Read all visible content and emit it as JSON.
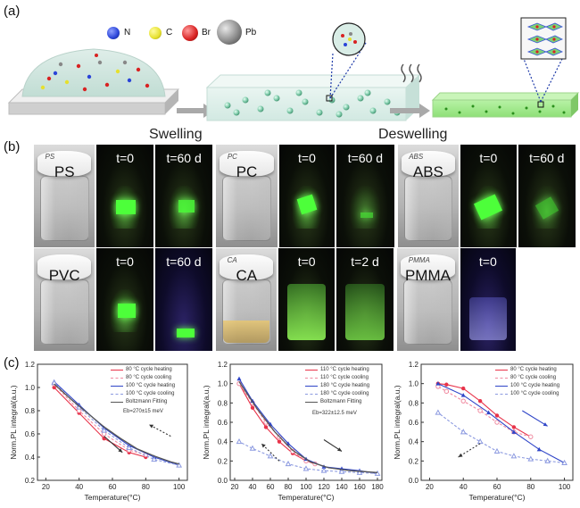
{
  "panel_labels": {
    "a": "(a)",
    "b": "(b)",
    "c": "(c)"
  },
  "legend_a": [
    {
      "symbol": "N",
      "color": "#2a44d8"
    },
    {
      "symbol": "C",
      "color": "#e6e02e"
    },
    {
      "symbol": "Br",
      "color": "#d82222"
    },
    {
      "symbol": "Pb",
      "color": "#888888"
    }
  ],
  "titles": {
    "swelling": "Swelling",
    "deswelling": "Deswelling"
  },
  "photos_row1": [
    {
      "vial": "PS",
      "cap": "PS",
      "t1": "t=0",
      "t2": "t=60 d"
    },
    {
      "vial": "PC",
      "cap": "PC",
      "t1": "t=0",
      "t2": "t=60 d"
    },
    {
      "vial": "ABS",
      "cap": "ABS",
      "t1": "t=0",
      "t2": "t=60 d"
    }
  ],
  "photos_row2": [
    {
      "vial": "PVC",
      "cap": "",
      "t1": "t=0",
      "t2": "t=60 d"
    },
    {
      "vial": "CA",
      "cap": "CA",
      "t1": "t=0",
      "t2": "t=2 d"
    },
    {
      "vial": "PMMA",
      "cap": "PMMA",
      "t1": "t=0",
      "t2": ""
    }
  ],
  "chart_data": [
    {
      "type": "line",
      "xlabel": "Temperature(°C)",
      "ylabel": "Norm.PL integral(a.u.)",
      "xlim": [
        15,
        105
      ],
      "ylim": [
        0.2,
        1.2
      ],
      "xticks": [
        20,
        40,
        60,
        80,
        100
      ],
      "yticks": [
        0.2,
        0.4,
        0.6,
        0.8,
        1.0,
        1.2
      ],
      "legend": [
        "80 °C cycle heating",
        "80 °C cycle cooling",
        "100 °C cycle heating",
        "100 °C cycle cooling",
        "Boltzmann Fitting"
      ],
      "annotation": "Eb=270±15 meV",
      "series": [
        {
          "name": "80 °C cycle heating",
          "color": "#e8334a",
          "dash": false,
          "marker": "circle",
          "x": [
            25,
            40,
            55,
            70,
            80
          ],
          "y": [
            1.0,
            0.78,
            0.56,
            0.44,
            0.4
          ]
        },
        {
          "name": "80 °C cycle cooling",
          "color": "#f08aa0",
          "dash": true,
          "marker": "circle-open",
          "x": [
            80,
            70,
            55,
            40,
            25
          ],
          "y": [
            0.42,
            0.46,
            0.6,
            0.8,
            1.03
          ]
        },
        {
          "name": "100 °C cycle heating",
          "color": "#2f45c8",
          "dash": false,
          "marker": "triangle",
          "x": [
            25,
            40,
            55,
            70,
            85,
            100
          ],
          "y": [
            1.05,
            0.85,
            0.65,
            0.5,
            0.4,
            0.33
          ]
        },
        {
          "name": "100 °C cycle cooling",
          "color": "#8c9ae0",
          "dash": true,
          "marker": "triangle-open",
          "x": [
            100,
            85,
            70,
            55,
            40,
            25
          ],
          "y": [
            0.33,
            0.38,
            0.48,
            0.63,
            0.83,
            1.04
          ]
        },
        {
          "name": "Boltzmann Fitting",
          "color": "#555555",
          "dash": false,
          "marker": "none",
          "x": [
            25,
            35,
            45,
            55,
            65,
            75,
            85,
            95,
            100
          ],
          "y": [
            1.03,
            0.9,
            0.78,
            0.66,
            0.56,
            0.47,
            0.41,
            0.36,
            0.34
          ]
        }
      ]
    },
    {
      "type": "line",
      "xlabel": "Temperature(°C)",
      "ylabel": "Norm.PL integral(a.u.)",
      "xlim": [
        15,
        185
      ],
      "ylim": [
        0.0,
        1.2
      ],
      "xticks": [
        20,
        40,
        60,
        80,
        100,
        120,
        140,
        160,
        180
      ],
      "yticks": [
        0.0,
        0.2,
        0.4,
        0.6,
        0.8,
        1.0,
        1.2
      ],
      "legend": [
        "110 °C cycle heating",
        "110 °C cycle cooling",
        "180 °C cycle heating",
        "180 °C cycle cooling",
        "Boltzmann Fitting"
      ],
      "annotation": "Eb=322±12.5 meV",
      "series": [
        {
          "name": "110 °C cycle heating",
          "color": "#e8334a",
          "dash": false,
          "marker": "circle",
          "x": [
            25,
            40,
            55,
            70,
            85,
            100,
            110
          ],
          "y": [
            1.0,
            0.75,
            0.55,
            0.4,
            0.28,
            0.2,
            0.17
          ]
        },
        {
          "name": "110 °C cycle cooling",
          "color": "#f08aa0",
          "dash": true,
          "marker": "circle-open",
          "x": [
            110,
            100,
            85,
            70,
            55,
            40,
            25
          ],
          "y": [
            0.17,
            0.2,
            0.3,
            0.45,
            0.6,
            0.8,
            1.0
          ]
        },
        {
          "name": "180 °C cycle heating",
          "color": "#2f45c8",
          "dash": false,
          "marker": "triangle",
          "x": [
            25,
            40,
            60,
            80,
            100,
            120,
            140,
            160,
            180
          ],
          "y": [
            1.05,
            0.82,
            0.58,
            0.38,
            0.22,
            0.14,
            0.12,
            0.1,
            0.07
          ]
        },
        {
          "name": "180 °C cycle cooling",
          "color": "#8c9ae0",
          "dash": true,
          "marker": "triangle-open",
          "x": [
            180,
            160,
            140,
            120,
            100,
            80,
            60,
            40,
            25
          ],
          "y": [
            0.07,
            0.08,
            0.09,
            0.1,
            0.12,
            0.17,
            0.25,
            0.33,
            0.4
          ]
        },
        {
          "name": "Boltzmann Fitting",
          "color": "#555555",
          "dash": false,
          "marker": "none",
          "x": [
            25,
            45,
            65,
            85,
            105,
            125,
            150,
            180
          ],
          "y": [
            1.02,
            0.74,
            0.5,
            0.31,
            0.19,
            0.13,
            0.1,
            0.08
          ]
        }
      ]
    },
    {
      "type": "line",
      "xlabel": "Temperature(°C)",
      "ylabel": "Norm.PL integral(a.u.)",
      "xlim": [
        15,
        105
      ],
      "ylim": [
        0.0,
        1.2
      ],
      "xticks": [
        20,
        40,
        60,
        80,
        100
      ],
      "yticks": [
        0.0,
        0.2,
        0.4,
        0.6,
        0.8,
        1.0,
        1.2
      ],
      "legend": [
        "80 °C cycle heating",
        "80 °C cycle cooling",
        "100 °C cycle heating",
        "100 °C cycle cooling"
      ],
      "annotation": "",
      "series": [
        {
          "name": "80 °C cycle heating",
          "color": "#e8334a",
          "dash": false,
          "marker": "circle",
          "x": [
            25,
            30,
            40,
            50,
            60,
            70,
            80
          ],
          "y": [
            1.0,
            0.99,
            0.95,
            0.82,
            0.67,
            0.55,
            0.45
          ]
        },
        {
          "name": "80 °C cycle cooling",
          "color": "#f08aa0",
          "dash": true,
          "marker": "circle-open",
          "x": [
            80,
            70,
            60,
            50,
            40,
            30,
            25
          ],
          "y": [
            0.45,
            0.5,
            0.6,
            0.72,
            0.82,
            0.92,
            0.97
          ]
        },
        {
          "name": "100 °C cycle heating",
          "color": "#2f45c8",
          "dash": false,
          "marker": "triangle",
          "x": [
            25,
            40,
            55,
            70,
            85,
            100
          ],
          "y": [
            1.0,
            0.88,
            0.7,
            0.5,
            0.32,
            0.18
          ]
        },
        {
          "name": "100 °C cycle cooling",
          "color": "#8c9ae0",
          "dash": true,
          "marker": "triangle-open",
          "x": [
            100,
            90,
            80,
            70,
            60,
            50,
            40,
            25
          ],
          "y": [
            0.18,
            0.2,
            0.22,
            0.25,
            0.3,
            0.4,
            0.5,
            0.7
          ]
        }
      ]
    }
  ]
}
